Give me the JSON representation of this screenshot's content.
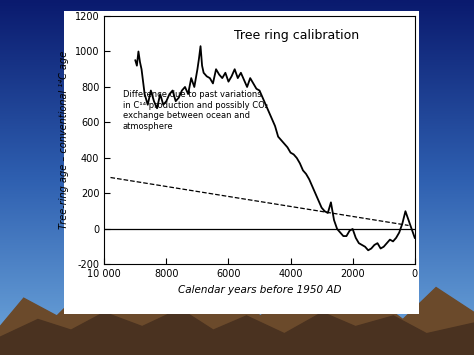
{
  "chart_data": {
    "type": "line",
    "title": "Tree ring calibration",
    "x_label": "Calendar years before 1950 AD",
    "y_label": "Tree-ring age – conventional ¹⁴C age",
    "annotation": "Difference due to past variations in C¹⁴ production and possibly CO₂ exchange between ocean and atmosphere",
    "xlim": [
      10000,
      0
    ],
    "ylim": [
      -200,
      1200
    ],
    "xticks": [
      {
        "value": 10000,
        "label": "10 000"
      },
      8000,
      6000,
      4000,
      2000,
      0
    ],
    "yticks": [
      -200,
      0,
      200,
      400,
      600,
      800,
      1000,
      1200
    ],
    "grid": false,
    "series": [
      {
        "color": "#000000",
        "line_style": "solid",
        "x": [
          9000,
          8950,
          8900,
          8850,
          8800,
          8700,
          8600,
          8500,
          8400,
          8300,
          8200,
          8100,
          8000,
          7900,
          7800,
          7700,
          7600,
          7500,
          7400,
          7300,
          7200,
          7100,
          7000,
          6950,
          6900,
          6850,
          6800,
          6700,
          6600,
          6500,
          6400,
          6300,
          6200,
          6100,
          6000,
          5900,
          5800,
          5700,
          5600,
          5500,
          5400,
          5300,
          5200,
          5100,
          5000,
          4900,
          4800,
          4700,
          4600,
          4500,
          4400,
          4300,
          4200,
          4100,
          4000,
          3900,
          3800,
          3700,
          3600,
          3500,
          3400,
          3300,
          3200,
          3100,
          3000,
          2900,
          2800,
          2700,
          2600,
          2500,
          2400,
          2300,
          2200,
          2100,
          2000,
          1900,
          1800,
          1700,
          1600,
          1500,
          1400,
          1300,
          1200,
          1100,
          1000,
          900,
          800,
          700,
          600,
          500,
          400,
          300,
          200,
          100,
          0
        ],
        "values": [
          950,
          920,
          1000,
          940,
          900,
          760,
          700,
          780,
          720,
          680,
          760,
          700,
          720,
          760,
          780,
          720,
          740,
          780,
          800,
          760,
          850,
          800,
          900,
          960,
          1030,
          920,
          880,
          860,
          850,
          820,
          900,
          870,
          850,
          880,
          830,
          860,
          900,
          850,
          880,
          840,
          800,
          850,
          820,
          790,
          780,
          740,
          700,
          660,
          620,
          580,
          520,
          500,
          480,
          460,
          430,
          420,
          400,
          370,
          330,
          310,
          280,
          240,
          200,
          160,
          120,
          100,
          90,
          150,
          50,
          0,
          -20,
          -40,
          -40,
          -10,
          0,
          -50,
          -80,
          -90,
          -100,
          -120,
          -110,
          -90,
          -80,
          -110,
          -100,
          -80,
          -60,
          -70,
          -50,
          -20,
          30,
          100,
          50,
          0,
          -50
        ]
      },
      {
        "color": "#000000",
        "line_style": "dashed",
        "x": [
          9800,
          200
        ],
        "values": [
          290,
          20
        ]
      },
      {
        "color": "#000000",
        "line_style": "solid",
        "x": [
          10000,
          0
        ],
        "values": [
          0,
          0
        ]
      }
    ]
  }
}
